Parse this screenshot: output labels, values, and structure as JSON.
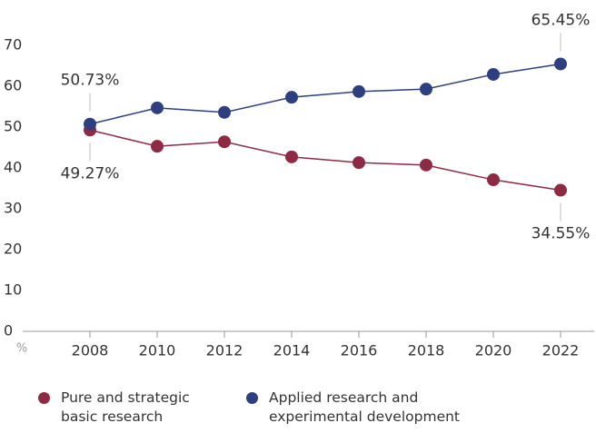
{
  "chart_data": {
    "type": "line",
    "y_label": "%",
    "x": [
      2008,
      2010,
      2012,
      2014,
      2016,
      2018,
      2020,
      2022
    ],
    "series": [
      {
        "name": "Pure and strategic basic research",
        "color": "#8e2a43",
        "values": [
          49.27,
          45.3,
          46.4,
          42.7,
          41.3,
          40.7,
          37.1,
          34.55
        ],
        "value_labels": [
          "49.27%",
          null,
          null,
          null,
          null,
          null,
          null,
          "34.55%"
        ]
      },
      {
        "name": "Applied research and experimental development",
        "color": "#2e3f7f",
        "values": [
          50.73,
          54.7,
          53.6,
          57.3,
          58.7,
          59.3,
          62.9,
          65.45
        ],
        "value_labels": [
          "50.73%",
          null,
          null,
          null,
          null,
          null,
          null,
          "65.45%"
        ]
      }
    ],
    "xlim": [
      2006,
      2023
    ],
    "xticks": [
      2008,
      2010,
      2012,
      2014,
      2016,
      2018,
      2020,
      2022
    ],
    "ylim": [
      0,
      70
    ],
    "yticks": [
      0,
      10,
      20,
      30,
      40,
      50,
      60,
      70
    ],
    "grid": false
  }
}
